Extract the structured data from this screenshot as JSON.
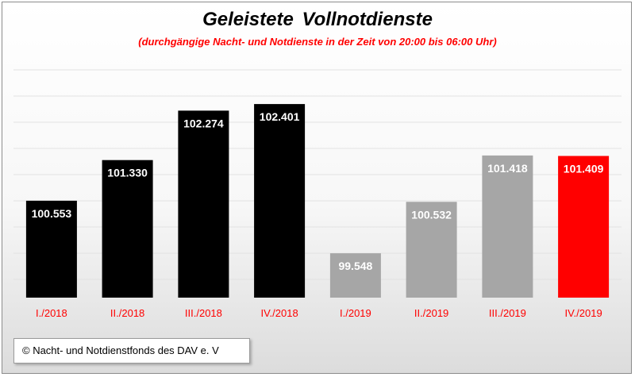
{
  "chart_data": {
    "type": "bar",
    "title": "Geleistete  Vollnotdienste",
    "subtitle": "(durchgängige Nacht- und Notdienste in der Zeit von 20:00 bis 06:00 Uhr)",
    "categories": [
      "I./2018",
      "II./2018",
      "III./2018",
      "IV./2018",
      "I./2019",
      "II./2019",
      "III./2019",
      "IV./2019"
    ],
    "values": [
      100553,
      101330,
      102274,
      102401,
      99548,
      100532,
      101418,
      101409
    ],
    "value_labels": [
      "100.553",
      "101.330",
      "102.274",
      "102.401",
      "99.548",
      "100.532",
      "101.418",
      "101.409"
    ],
    "bar_colors": [
      "#000000",
      "#000000",
      "#000000",
      "#000000",
      "#a6a6a6",
      "#a6a6a6",
      "#a6a6a6",
      "#ff0000"
    ],
    "category_label_color": "#ff0000",
    "ylim": [
      98700,
      103100
    ],
    "grid": true,
    "legend": "none"
  },
  "footer": {
    "source": "© Nacht- und Notdienstfonds  des DAV e. V"
  }
}
